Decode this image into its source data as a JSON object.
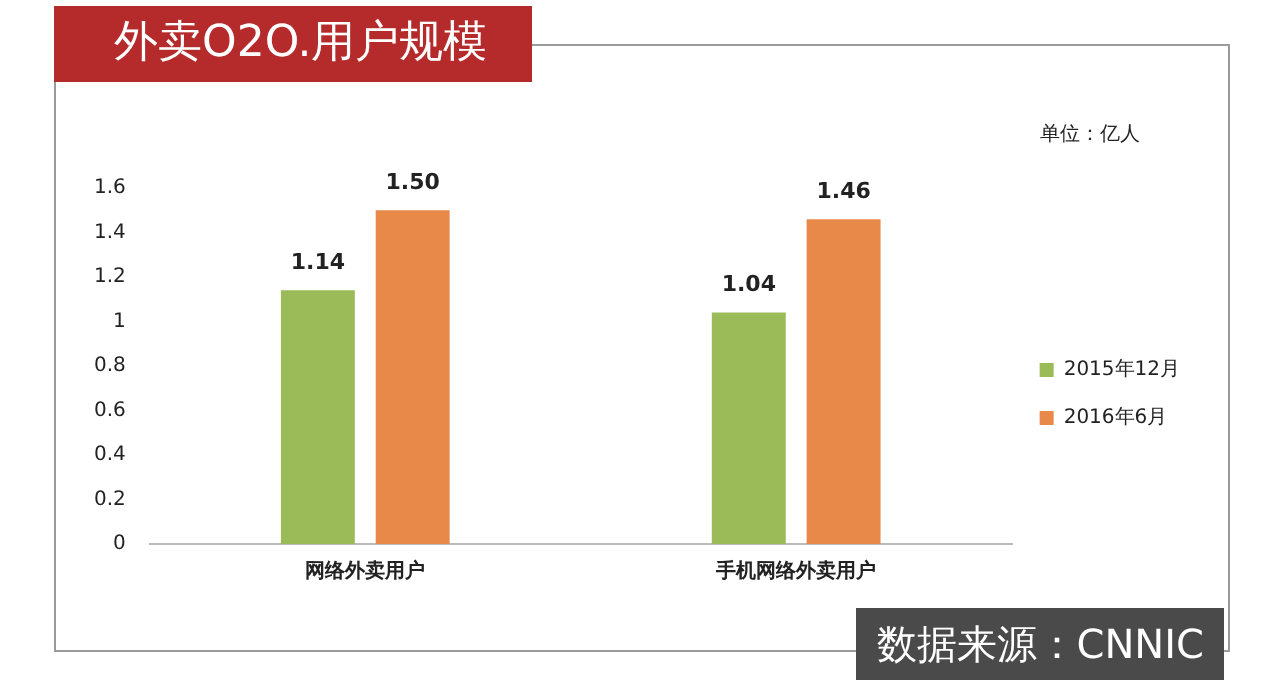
{
  "chart_data": {
    "type": "bar",
    "title": "外卖O2O.用户规模",
    "categories": [
      "网络外卖用户",
      "手机网络外卖用户"
    ],
    "series": [
      {
        "name": "2015年12月",
        "color": "#9bbb59",
        "values": [
          1.14,
          1.04
        ],
        "value_labels": [
          "1.14",
          "1.04"
        ]
      },
      {
        "name": "2016年6月",
        "color": "#e8894a",
        "values": [
          1.5,
          1.46
        ],
        "value_labels": [
          "1.50",
          "1.46"
        ]
      }
    ],
    "ylim": [
      0,
      1.6
    ],
    "yticks": [
      0,
      0.2,
      0.4,
      0.6,
      0.8,
      1,
      1.2,
      1.4,
      1.6
    ],
    "grid": false,
    "legend": "right",
    "annotations": [
      "单位：亿人",
      "数据来源：CNNIC"
    ]
  }
}
